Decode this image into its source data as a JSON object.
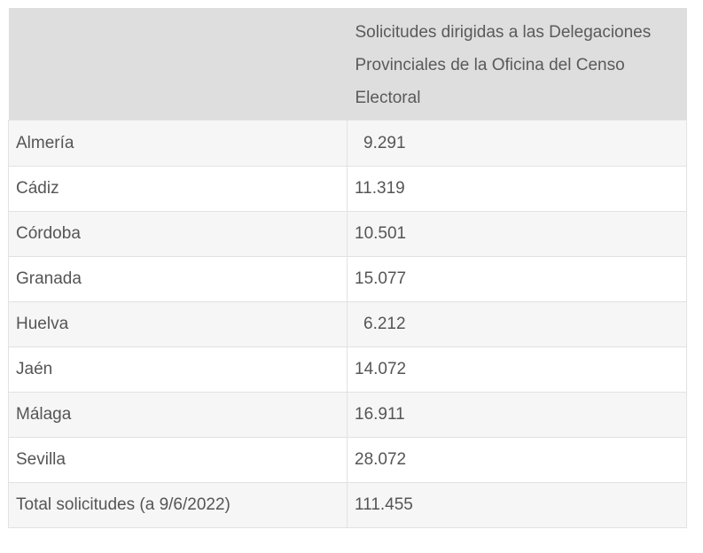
{
  "table": {
    "header": {
      "col1": "",
      "col2": "Solicitudes dirigidas a las Delegaciones Provinciales de la Oficina del Censo Electoral"
    },
    "rows": [
      {
        "province": "Almería",
        "value": "9.291"
      },
      {
        "province": "Cádiz",
        "value": "11.319"
      },
      {
        "province": "Córdoba",
        "value": "10.501"
      },
      {
        "province": "Granada",
        "value": "15.077"
      },
      {
        "province": "Huelva",
        "value": "6.212"
      },
      {
        "province": "Jaén",
        "value": "14.072"
      },
      {
        "province": "Málaga",
        "value": "16.911"
      },
      {
        "province": "Sevilla",
        "value": "28.072"
      },
      {
        "province": "Total solicitudes  (a 9/6/2022)",
        "value": "111.455"
      }
    ]
  }
}
